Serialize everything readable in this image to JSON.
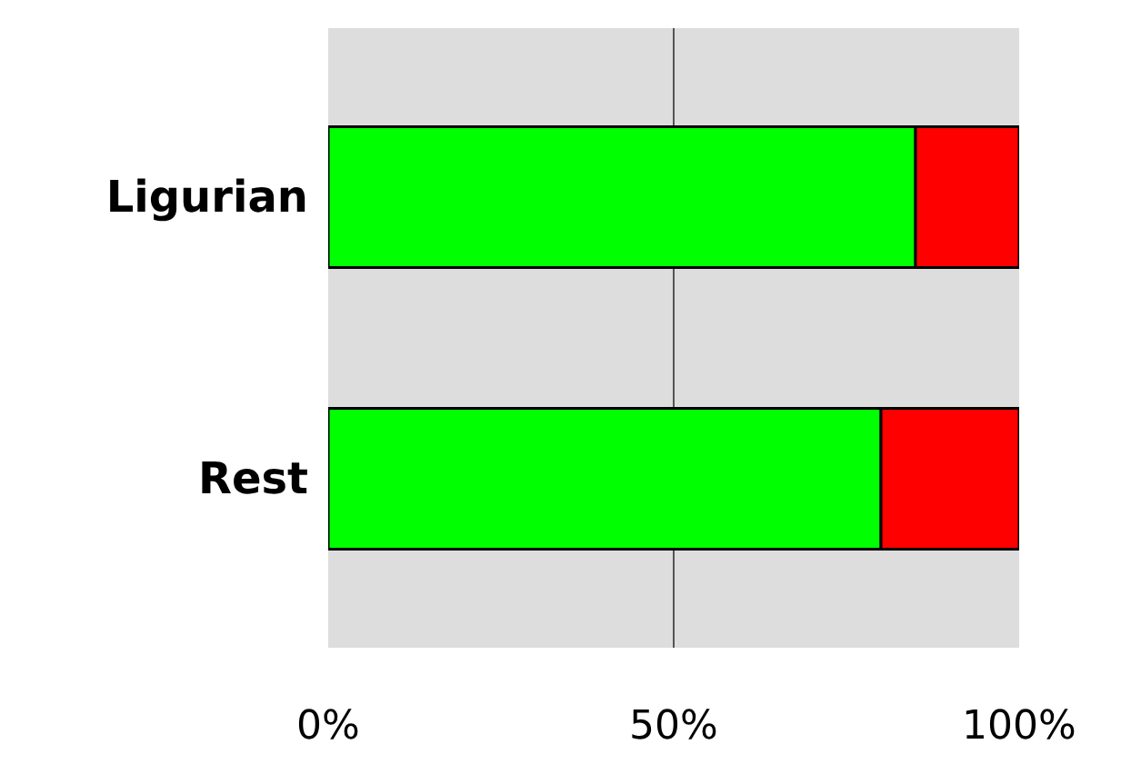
{
  "chart_data": {
    "type": "bar",
    "orientation": "horizontal",
    "stacked": true,
    "categories": [
      "Ligurian",
      "Rest"
    ],
    "series": [
      {
        "color": "#00ff00",
        "values": [
          85,
          80
        ]
      },
      {
        "color": "#ff0000",
        "values": [
          15,
          20
        ]
      }
    ],
    "xlim": [
      0,
      100
    ],
    "xticks": [
      {
        "value": 0,
        "label": "0%"
      },
      {
        "value": 50,
        "label": "50%"
      },
      {
        "value": 100,
        "label": "100%"
      }
    ],
    "grid": "x"
  }
}
